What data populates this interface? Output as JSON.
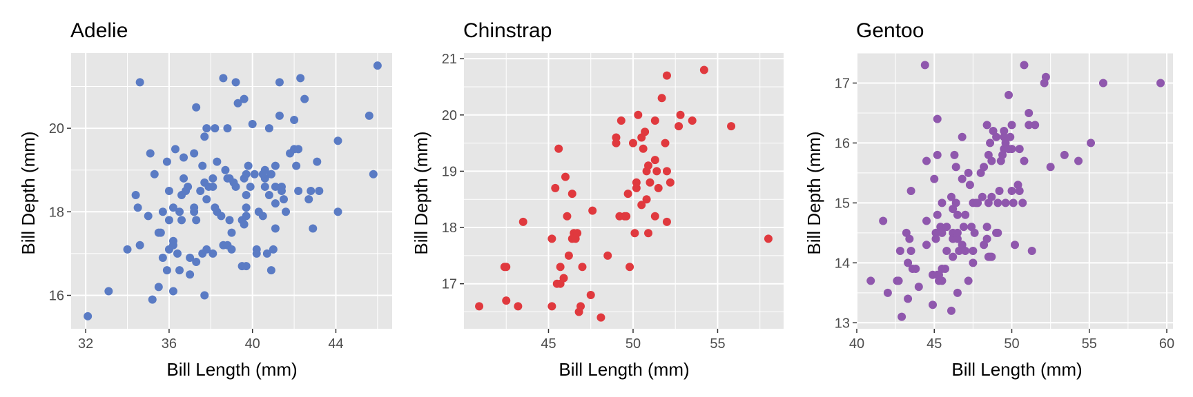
{
  "chart_data": [
    {
      "type": "scatter",
      "title": "Adelie",
      "xlabel": "Bill Length (mm)",
      "ylabel": "Bill Depth (mm)",
      "xlim": [
        31.3,
        46.7
      ],
      "ylim": [
        15.2,
        21.8
      ],
      "xticks": [
        32,
        36,
        40,
        44
      ],
      "yticks": [
        16,
        18,
        20
      ],
      "color": "#5A7BC4",
      "points": [
        [
          32.1,
          15.5
        ],
        [
          33.1,
          16.1
        ],
        [
          34.0,
          17.1
        ],
        [
          34.4,
          18.4
        ],
        [
          34.5,
          18.1
        ],
        [
          34.6,
          21.1
        ],
        [
          34.6,
          17.2
        ],
        [
          35.0,
          17.9
        ],
        [
          35.1,
          19.4
        ],
        [
          35.2,
          15.9
        ],
        [
          35.3,
          18.9
        ],
        [
          35.5,
          16.2
        ],
        [
          35.5,
          17.5
        ],
        [
          35.6,
          17.5
        ],
        [
          35.7,
          16.9
        ],
        [
          35.7,
          18.0
        ],
        [
          35.9,
          16.6
        ],
        [
          35.9,
          19.2
        ],
        [
          36.0,
          17.1
        ],
        [
          36.0,
          17.8
        ],
        [
          36.0,
          18.5
        ],
        [
          36.2,
          16.1
        ],
        [
          36.2,
          17.2
        ],
        [
          36.2,
          17.3
        ],
        [
          36.3,
          19.5
        ],
        [
          36.4,
          17.0
        ],
        [
          36.5,
          16.6
        ],
        [
          36.5,
          18.0
        ],
        [
          36.6,
          17.8
        ],
        [
          36.6,
          18.4
        ],
        [
          36.7,
          18.8
        ],
        [
          36.7,
          19.3
        ],
        [
          36.8,
          18.5
        ],
        [
          36.9,
          18.6
        ],
        [
          37.0,
          16.5
        ],
        [
          37.0,
          16.9
        ],
        [
          37.2,
          18.1
        ],
        [
          37.2,
          19.4
        ],
        [
          37.3,
          16.8
        ],
        [
          37.3,
          17.8
        ],
        [
          37.3,
          20.5
        ],
        [
          37.5,
          18.5
        ],
        [
          37.6,
          17.0
        ],
        [
          37.6,
          19.1
        ],
        [
          37.7,
          16.0
        ],
        [
          37.7,
          18.7
        ],
        [
          37.7,
          19.8
        ],
        [
          37.8,
          17.1
        ],
        [
          37.8,
          18.3
        ],
        [
          37.8,
          20.0
        ],
        [
          37.9,
          18.6
        ],
        [
          38.1,
          17.0
        ],
        [
          38.1,
          18.6
        ],
        [
          38.2,
          18.1
        ],
        [
          38.2,
          20.0
        ],
        [
          38.3,
          19.2
        ],
        [
          38.5,
          17.9
        ],
        [
          38.6,
          17.2
        ],
        [
          38.6,
          21.2
        ],
        [
          38.7,
          19.0
        ],
        [
          38.8,
          17.2
        ],
        [
          38.8,
          20.0
        ],
        [
          38.9,
          17.8
        ],
        [
          38.9,
          18.8
        ],
        [
          39.0,
          17.1
        ],
        [
          39.0,
          17.5
        ],
        [
          39.1,
          18.7
        ],
        [
          39.2,
          18.6
        ],
        [
          39.2,
          21.1
        ],
        [
          39.3,
          20.6
        ],
        [
          39.5,
          16.7
        ],
        [
          39.5,
          17.8
        ],
        [
          39.6,
          17.7
        ],
        [
          39.6,
          20.7
        ],
        [
          39.7,
          18.4
        ],
        [
          39.7,
          18.9
        ],
        [
          39.8,
          19.1
        ],
        [
          40.2,
          17.0
        ],
        [
          40.3,
          18.0
        ],
        [
          40.5,
          17.9
        ],
        [
          40.6,
          18.8
        ],
        [
          41.0,
          17.1
        ],
        [
          41.1,
          18.2
        ],
        [
          41.3,
          21.1
        ],
        [
          42.2,
          18.5
        ],
        [
          42.3,
          21.2
        ],
        [
          43.2,
          18.5
        ],
        [
          44.1,
          19.7
        ],
        [
          45.6,
          20.3
        ],
        [
          45.8,
          18.9
        ],
        [
          46.0,
          21.5
        ],
        [
          39.7,
          16.7
        ],
        [
          40.2,
          17.1
        ],
        [
          40.7,
          17.0
        ],
        [
          40.8,
          18.4
        ],
        [
          40.9,
          16.6
        ],
        [
          40.9,
          18.9
        ],
        [
          41.1,
          17.6
        ],
        [
          41.1,
          19.1
        ],
        [
          41.4,
          18.5
        ],
        [
          41.6,
          18.0
        ],
        [
          42.0,
          19.5
        ],
        [
          42.1,
          19.1
        ],
        [
          42.5,
          20.7
        ],
        [
          42.7,
          18.3
        ],
        [
          42.9,
          17.6
        ],
        [
          43.1,
          19.2
        ],
        [
          44.1,
          18.0
        ],
        [
          40.5,
          18.9
        ],
        [
          39.7,
          17.9
        ],
        [
          41.3,
          20.3
        ],
        [
          40.6,
          19.0
        ],
        [
          40.8,
          20.0
        ],
        [
          41.5,
          18.3
        ],
        [
          41.8,
          19.4
        ],
        [
          42.8,
          18.5
        ],
        [
          40.1,
          18.9
        ],
        [
          40.0,
          20.1
        ],
        [
          41.4,
          18.6
        ],
        [
          39.6,
          18.8
        ],
        [
          39.9,
          18.6
        ],
        [
          40.6,
          18.6
        ],
        [
          42.2,
          19.5
        ],
        [
          42.0,
          20.2
        ],
        [
          41.1,
          18.6
        ],
        [
          40.9,
          18.9
        ],
        [
          39.7,
          18.1
        ],
        [
          38.8,
          18.8
        ],
        [
          38.1,
          18.8
        ],
        [
          36.2,
          18.1
        ],
        [
          38.3,
          18.0
        ],
        [
          37.2,
          18.0
        ]
      ]
    },
    {
      "type": "scatter",
      "title": "Chinstrap",
      "xlabel": "Bill Length (mm)",
      "ylabel": "Bill Depth (mm)",
      "xlim": [
        40.0,
        58.9
      ],
      "ylim": [
        16.2,
        21.1
      ],
      "xticks": [
        45,
        50,
        55
      ],
      "yticks": [
        17,
        18,
        19,
        20,
        21
      ],
      "color": "#E0393E",
      "points": [
        [
          40.9,
          16.6
        ],
        [
          42.4,
          17.3
        ],
        [
          42.5,
          16.7
        ],
        [
          42.5,
          17.3
        ],
        [
          43.2,
          16.6
        ],
        [
          43.5,
          18.1
        ],
        [
          45.2,
          16.6
        ],
        [
          45.2,
          17.8
        ],
        [
          45.4,
          18.7
        ],
        [
          45.5,
          17.0
        ],
        [
          45.6,
          19.4
        ],
        [
          45.7,
          17.0
        ],
        [
          45.7,
          17.3
        ],
        [
          45.9,
          17.1
        ],
        [
          46.0,
          18.9
        ],
        [
          46.1,
          18.2
        ],
        [
          46.2,
          17.5
        ],
        [
          46.4,
          17.8
        ],
        [
          46.4,
          18.6
        ],
        [
          46.5,
          17.9
        ],
        [
          46.6,
          17.8
        ],
        [
          46.7,
          17.9
        ],
        [
          46.8,
          16.5
        ],
        [
          46.9,
          16.6
        ],
        [
          47.0,
          17.3
        ],
        [
          47.5,
          16.8
        ],
        [
          47.6,
          18.3
        ],
        [
          48.1,
          16.4
        ],
        [
          48.5,
          17.5
        ],
        [
          49.0,
          19.5
        ],
        [
          49.0,
          19.6
        ],
        [
          49.2,
          18.2
        ],
        [
          49.3,
          19.9
        ],
        [
          49.5,
          18.2
        ],
        [
          49.6,
          18.2
        ],
        [
          49.7,
          18.6
        ],
        [
          49.8,
          17.3
        ],
        [
          50.0,
          19.5
        ],
        [
          50.1,
          17.9
        ],
        [
          50.2,
          18.7
        ],
        [
          50.2,
          18.8
        ],
        [
          50.3,
          20.0
        ],
        [
          50.5,
          18.4
        ],
        [
          50.5,
          19.6
        ],
        [
          50.6,
          19.4
        ],
        [
          50.7,
          19.7
        ],
        [
          50.8,
          18.5
        ],
        [
          50.8,
          19.0
        ],
        [
          50.9,
          17.9
        ],
        [
          50.9,
          19.1
        ],
        [
          51.0,
          18.8
        ],
        [
          51.3,
          18.2
        ],
        [
          51.3,
          19.2
        ],
        [
          51.3,
          19.9
        ],
        [
          51.4,
          19.0
        ],
        [
          51.5,
          18.7
        ],
        [
          51.7,
          20.3
        ],
        [
          51.9,
          19.5
        ],
        [
          52.0,
          18.1
        ],
        [
          52.0,
          19.0
        ],
        [
          52.0,
          20.7
        ],
        [
          52.2,
          18.8
        ],
        [
          52.7,
          19.8
        ],
        [
          52.8,
          20.0
        ],
        [
          53.5,
          19.9
        ],
        [
          54.2,
          20.8
        ],
        [
          55.8,
          19.8
        ],
        [
          58.0,
          17.8
        ]
      ]
    },
    {
      "type": "scatter",
      "title": "Gentoo",
      "xlabel": "Bill Length (mm)",
      "ylabel": "Bill Depth (mm)",
      "xlim": [
        40.0,
        60.4
      ],
      "ylim": [
        12.9,
        17.5
      ],
      "xticks": [
        40,
        45,
        50,
        55,
        60
      ],
      "yticks": [
        13,
        14,
        15,
        16,
        17
      ],
      "color": "#8F57AD",
      "points": [
        [
          40.9,
          13.7
        ],
        [
          41.7,
          14.7
        ],
        [
          42.0,
          13.5
        ],
        [
          42.6,
          13.7
        ],
        [
          42.7,
          13.7
        ],
        [
          42.8,
          14.2
        ],
        [
          42.9,
          13.1
        ],
        [
          43.2,
          14.5
        ],
        [
          43.3,
          13.4
        ],
        [
          43.3,
          14.0
        ],
        [
          43.4,
          14.4
        ],
        [
          43.5,
          14.2
        ],
        [
          43.5,
          15.2
        ],
        [
          43.6,
          13.9
        ],
        [
          43.8,
          13.9
        ],
        [
          44.0,
          13.6
        ],
        [
          44.4,
          17.3
        ],
        [
          44.5,
          14.3
        ],
        [
          44.5,
          14.7
        ],
        [
          44.5,
          15.7
        ],
        [
          44.9,
          13.3
        ],
        [
          44.9,
          13.8
        ],
        [
          45.0,
          15.4
        ],
        [
          45.1,
          14.4
        ],
        [
          45.1,
          14.5
        ],
        [
          45.2,
          13.8
        ],
        [
          45.2,
          14.8
        ],
        [
          45.2,
          15.8
        ],
        [
          45.2,
          16.4
        ],
        [
          45.3,
          13.7
        ],
        [
          45.3,
          13.8
        ],
        [
          45.4,
          14.6
        ],
        [
          45.5,
          13.7
        ],
        [
          45.5,
          13.9
        ],
        [
          45.5,
          14.5
        ],
        [
          45.5,
          15.0
        ],
        [
          45.7,
          13.9
        ],
        [
          45.8,
          14.2
        ],
        [
          45.8,
          14.6
        ],
        [
          46.1,
          13.2
        ],
        [
          46.1,
          15.1
        ],
        [
          46.2,
          14.1
        ],
        [
          46.2,
          14.4
        ],
        [
          46.2,
          14.5
        ],
        [
          46.2,
          14.9
        ],
        [
          46.3,
          15.8
        ],
        [
          46.4,
          15.0
        ],
        [
          46.4,
          15.6
        ],
        [
          46.5,
          13.5
        ],
        [
          46.5,
          14.4
        ],
        [
          46.5,
          14.8
        ],
        [
          46.6,
          14.2
        ],
        [
          46.8,
          14.3
        ],
        [
          46.8,
          15.4
        ],
        [
          46.8,
          16.1
        ],
        [
          46.9,
          14.6
        ],
        [
          47.2,
          13.7
        ],
        [
          47.2,
          15.5
        ],
        [
          47.3,
          15.3
        ],
        [
          47.4,
          14.6
        ],
        [
          47.5,
          14.0
        ],
        [
          47.5,
          14.2
        ],
        [
          47.5,
          15.0
        ],
        [
          47.6,
          14.5
        ],
        [
          47.7,
          15.0
        ],
        [
          47.8,
          15.0
        ],
        [
          48.1,
          15.1
        ],
        [
          48.2,
          14.3
        ],
        [
          48.2,
          15.6
        ],
        [
          48.4,
          14.4
        ],
        [
          48.4,
          14.6
        ],
        [
          48.4,
          16.3
        ],
        [
          48.5,
          14.1
        ],
        [
          48.5,
          15.0
        ],
        [
          48.6,
          14.1
        ],
        [
          48.6,
          16.0
        ],
        [
          48.7,
          14.1
        ],
        [
          48.7,
          15.1
        ],
        [
          48.7,
          15.7
        ],
        [
          48.8,
          16.2
        ],
        [
          49.0,
          16.1
        ],
        [
          49.1,
          14.5
        ],
        [
          49.1,
          15.0
        ],
        [
          49.2,
          15.2
        ],
        [
          49.3,
          15.7
        ],
        [
          49.4,
          15.8
        ],
        [
          49.5,
          15.9
        ],
        [
          49.5,
          16.1
        ],
        [
          49.5,
          16.2
        ],
        [
          49.6,
          15.0
        ],
        [
          49.6,
          16.0
        ],
        [
          49.8,
          15.9
        ],
        [
          49.8,
          16.8
        ],
        [
          49.9,
          16.1
        ],
        [
          50.0,
          15.2
        ],
        [
          50.0,
          15.9
        ],
        [
          50.0,
          16.3
        ],
        [
          50.1,
          15.0
        ],
        [
          50.2,
          14.3
        ],
        [
          50.4,
          15.3
        ],
        [
          50.5,
          15.2
        ],
        [
          50.5,
          15.9
        ],
        [
          50.7,
          15.0
        ],
        [
          50.8,
          15.7
        ],
        [
          50.8,
          17.3
        ],
        [
          51.1,
          16.3
        ],
        [
          51.1,
          16.5
        ],
        [
          51.3,
          14.2
        ],
        [
          51.5,
          16.3
        ],
        [
          52.1,
          17.0
        ],
        [
          52.2,
          17.1
        ],
        [
          52.5,
          15.6
        ],
        [
          53.4,
          15.8
        ],
        [
          54.3,
          15.7
        ],
        [
          55.1,
          16.0
        ],
        [
          55.9,
          17.0
        ],
        [
          59.6,
          17.0
        ],
        [
          46.5,
          14.5
        ],
        [
          47.0,
          14.8
        ],
        [
          48.0,
          15.5
        ],
        [
          49.0,
          14.5
        ],
        [
          48.5,
          15.8
        ],
        [
          47.0,
          14.2
        ]
      ]
    }
  ]
}
